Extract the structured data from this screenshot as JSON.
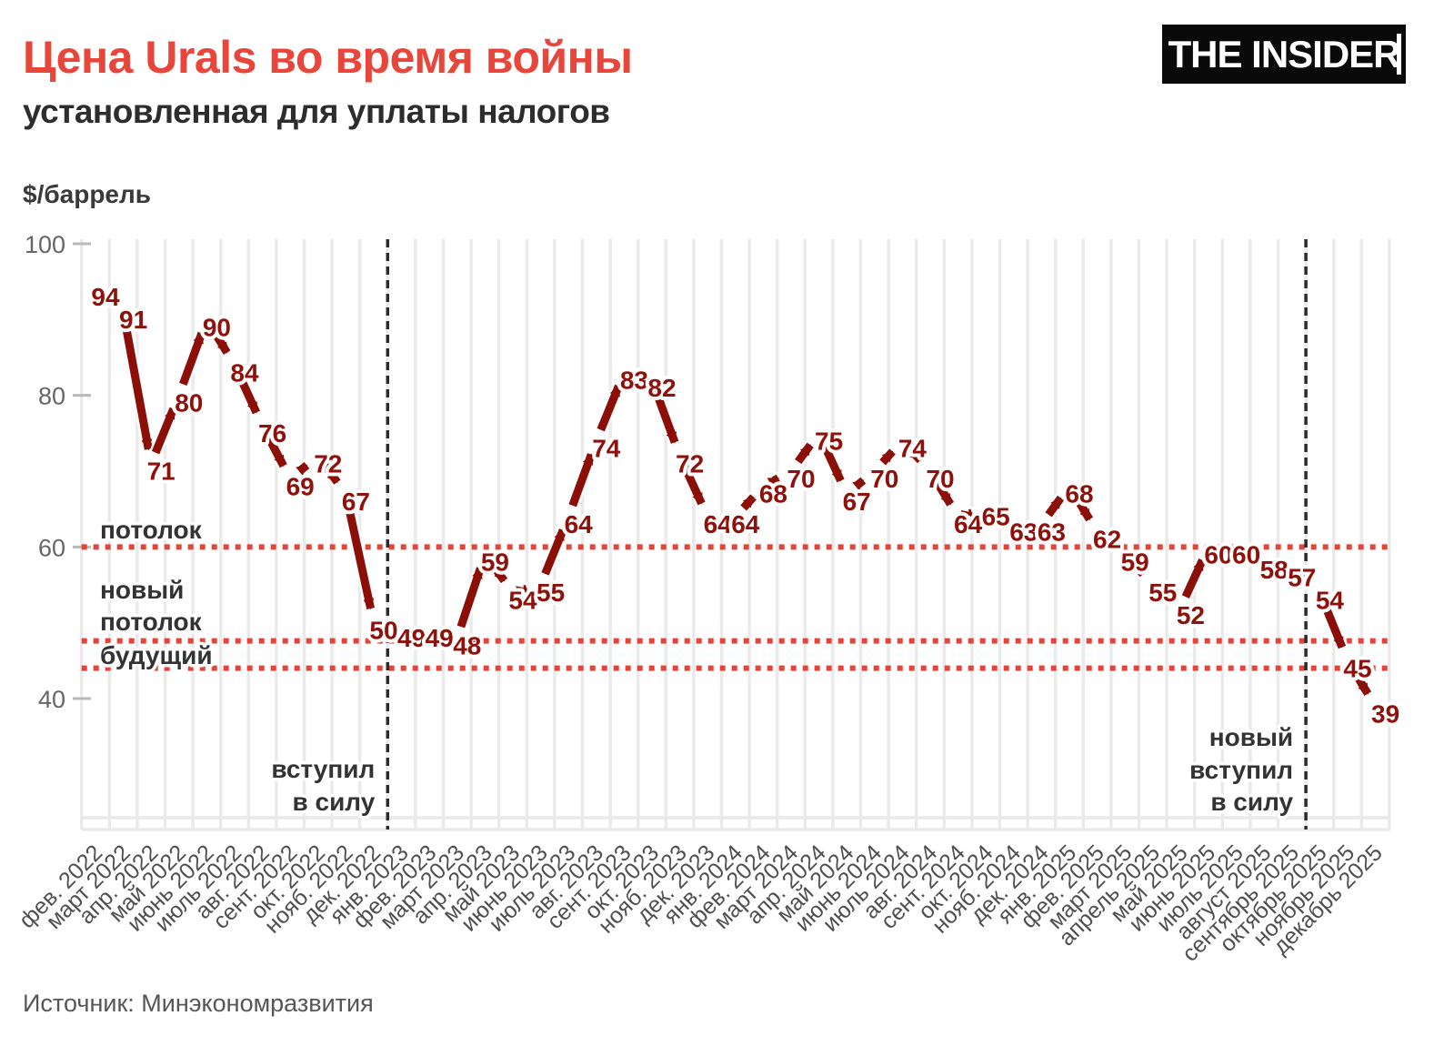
{
  "header": {
    "title": "Цена Urals во время войны",
    "subtitle": "установленная для уплаты налогов",
    "logo": "THE INSIDER"
  },
  "footer": {
    "source": "Источник: Минэкономразвития"
  },
  "chart_data": {
    "type": "line",
    "unit": "$/баррель",
    "series_name": "Цена Urals",
    "x": [
      "фев. 2022",
      "март 2022",
      "апр. 2022",
      "май 2022",
      "июнь 2022",
      "июль 2022",
      "авг. 2022",
      "сент. 2022",
      "окт. 2022",
      "нояб. 2022",
      "дек. 2022",
      "янв. 2023",
      "фев. 2023",
      "март 2023",
      "апр. 2023",
      "май 2023",
      "июнь 2023",
      "июль 2023",
      "авг. 2023",
      "сент. 2023",
      "окт. 2023",
      "нояб. 2023",
      "дек. 2023",
      "янв. 2024",
      "фев. 2024",
      "март 2024",
      "апр. 2024",
      "май 2024",
      "июнь 2024",
      "июль 2024",
      "авг. 2024",
      "сент. 2024",
      "окт. 2024",
      "нояб. 2024",
      "дек. 2024",
      "янв. 2025",
      "фев. 2025",
      "март 2025",
      "апрель 2025",
      "май 2025",
      "июнь 2025",
      "июль 2025",
      "август 2025",
      "сентябрь 2025",
      "октябрь 2025",
      "ноябрь 2025",
      "декабрь 2025"
    ],
    "values": [
      94,
      91,
      71,
      80,
      90,
      84,
      76,
      69,
      72,
      67,
      50,
      49,
      49,
      48,
      59,
      54,
      55,
      64,
      74,
      83,
      82,
      72,
      64,
      64,
      68,
      70,
      75,
      67,
      70,
      74,
      70,
      64,
      65,
      63,
      63,
      68,
      62,
      59,
      55,
      52,
      60,
      60,
      58,
      57,
      54,
      45,
      39
    ],
    "yticks": [
      100,
      80,
      60,
      40
    ],
    "ylim": [
      22,
      100
    ],
    "grid": "vertical-stripes",
    "legend": "none",
    "reference_lines": [
      {
        "value": 60,
        "label_lines": [
          "потолок"
        ]
      },
      {
        "value": 47.6,
        "label_lines": [
          "новый",
          "потолок"
        ]
      },
      {
        "value": 44,
        "label_lines": [
          "будущий"
        ]
      }
    ],
    "event_lines": [
      {
        "after": "дек. 2022",
        "label_lines": [
          "вступил",
          "в силу"
        ]
      },
      {
        "after": "сентябрь 2025",
        "label_lines": [
          "новый",
          "вступил",
          "в силу"
        ]
      }
    ],
    "colors": {
      "line": "#8b0f07",
      "value_labels": "#8e120b",
      "reference": "#e2453a",
      "event": "#2b2b2b",
      "grid": "#eaeaea",
      "axis_text": "#666666",
      "month_text": "#4f4f4f",
      "annotation_text": "#333333",
      "title_accent": "#e8463b"
    }
  }
}
